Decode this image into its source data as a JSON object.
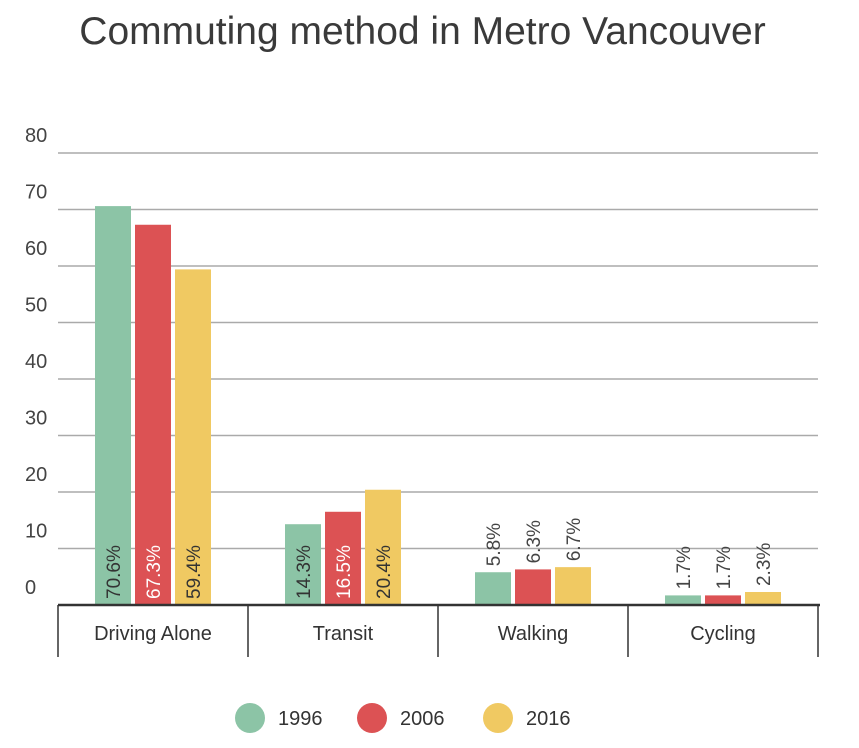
{
  "chart_data": {
    "type": "bar",
    "title": "Commuting method in Metro Vancouver",
    "xlabel": "",
    "ylabel": "",
    "ylim": [
      0,
      80
    ],
    "yticks": [
      0,
      10,
      20,
      30,
      40,
      50,
      60,
      70,
      80
    ],
    "grid": true,
    "legend_position": "bottom",
    "categories": [
      "Driving Alone",
      "Transit",
      "Walking",
      "Cycling"
    ],
    "series": [
      {
        "name": "1996",
        "color": "#8cc4a6",
        "label_color": "#333333",
        "values": [
          70.6,
          14.3,
          5.8,
          1.7
        ],
        "labels": [
          "70.6%",
          "14.3%",
          "5.8%",
          "1.7%"
        ]
      },
      {
        "name": "2006",
        "color": "#dc5254",
        "label_color": "#ffffff",
        "values": [
          67.3,
          16.5,
          6.3,
          1.7
        ],
        "labels": [
          "67.3%",
          "16.5%",
          "6.3%",
          "1.7%"
        ]
      },
      {
        "name": "2016",
        "color": "#f0c962",
        "label_color": "#333333",
        "values": [
          59.4,
          20.4,
          6.7,
          2.3
        ],
        "labels": [
          "59.4%",
          "20.4%",
          "6.7%",
          "2.3%"
        ]
      }
    ]
  }
}
